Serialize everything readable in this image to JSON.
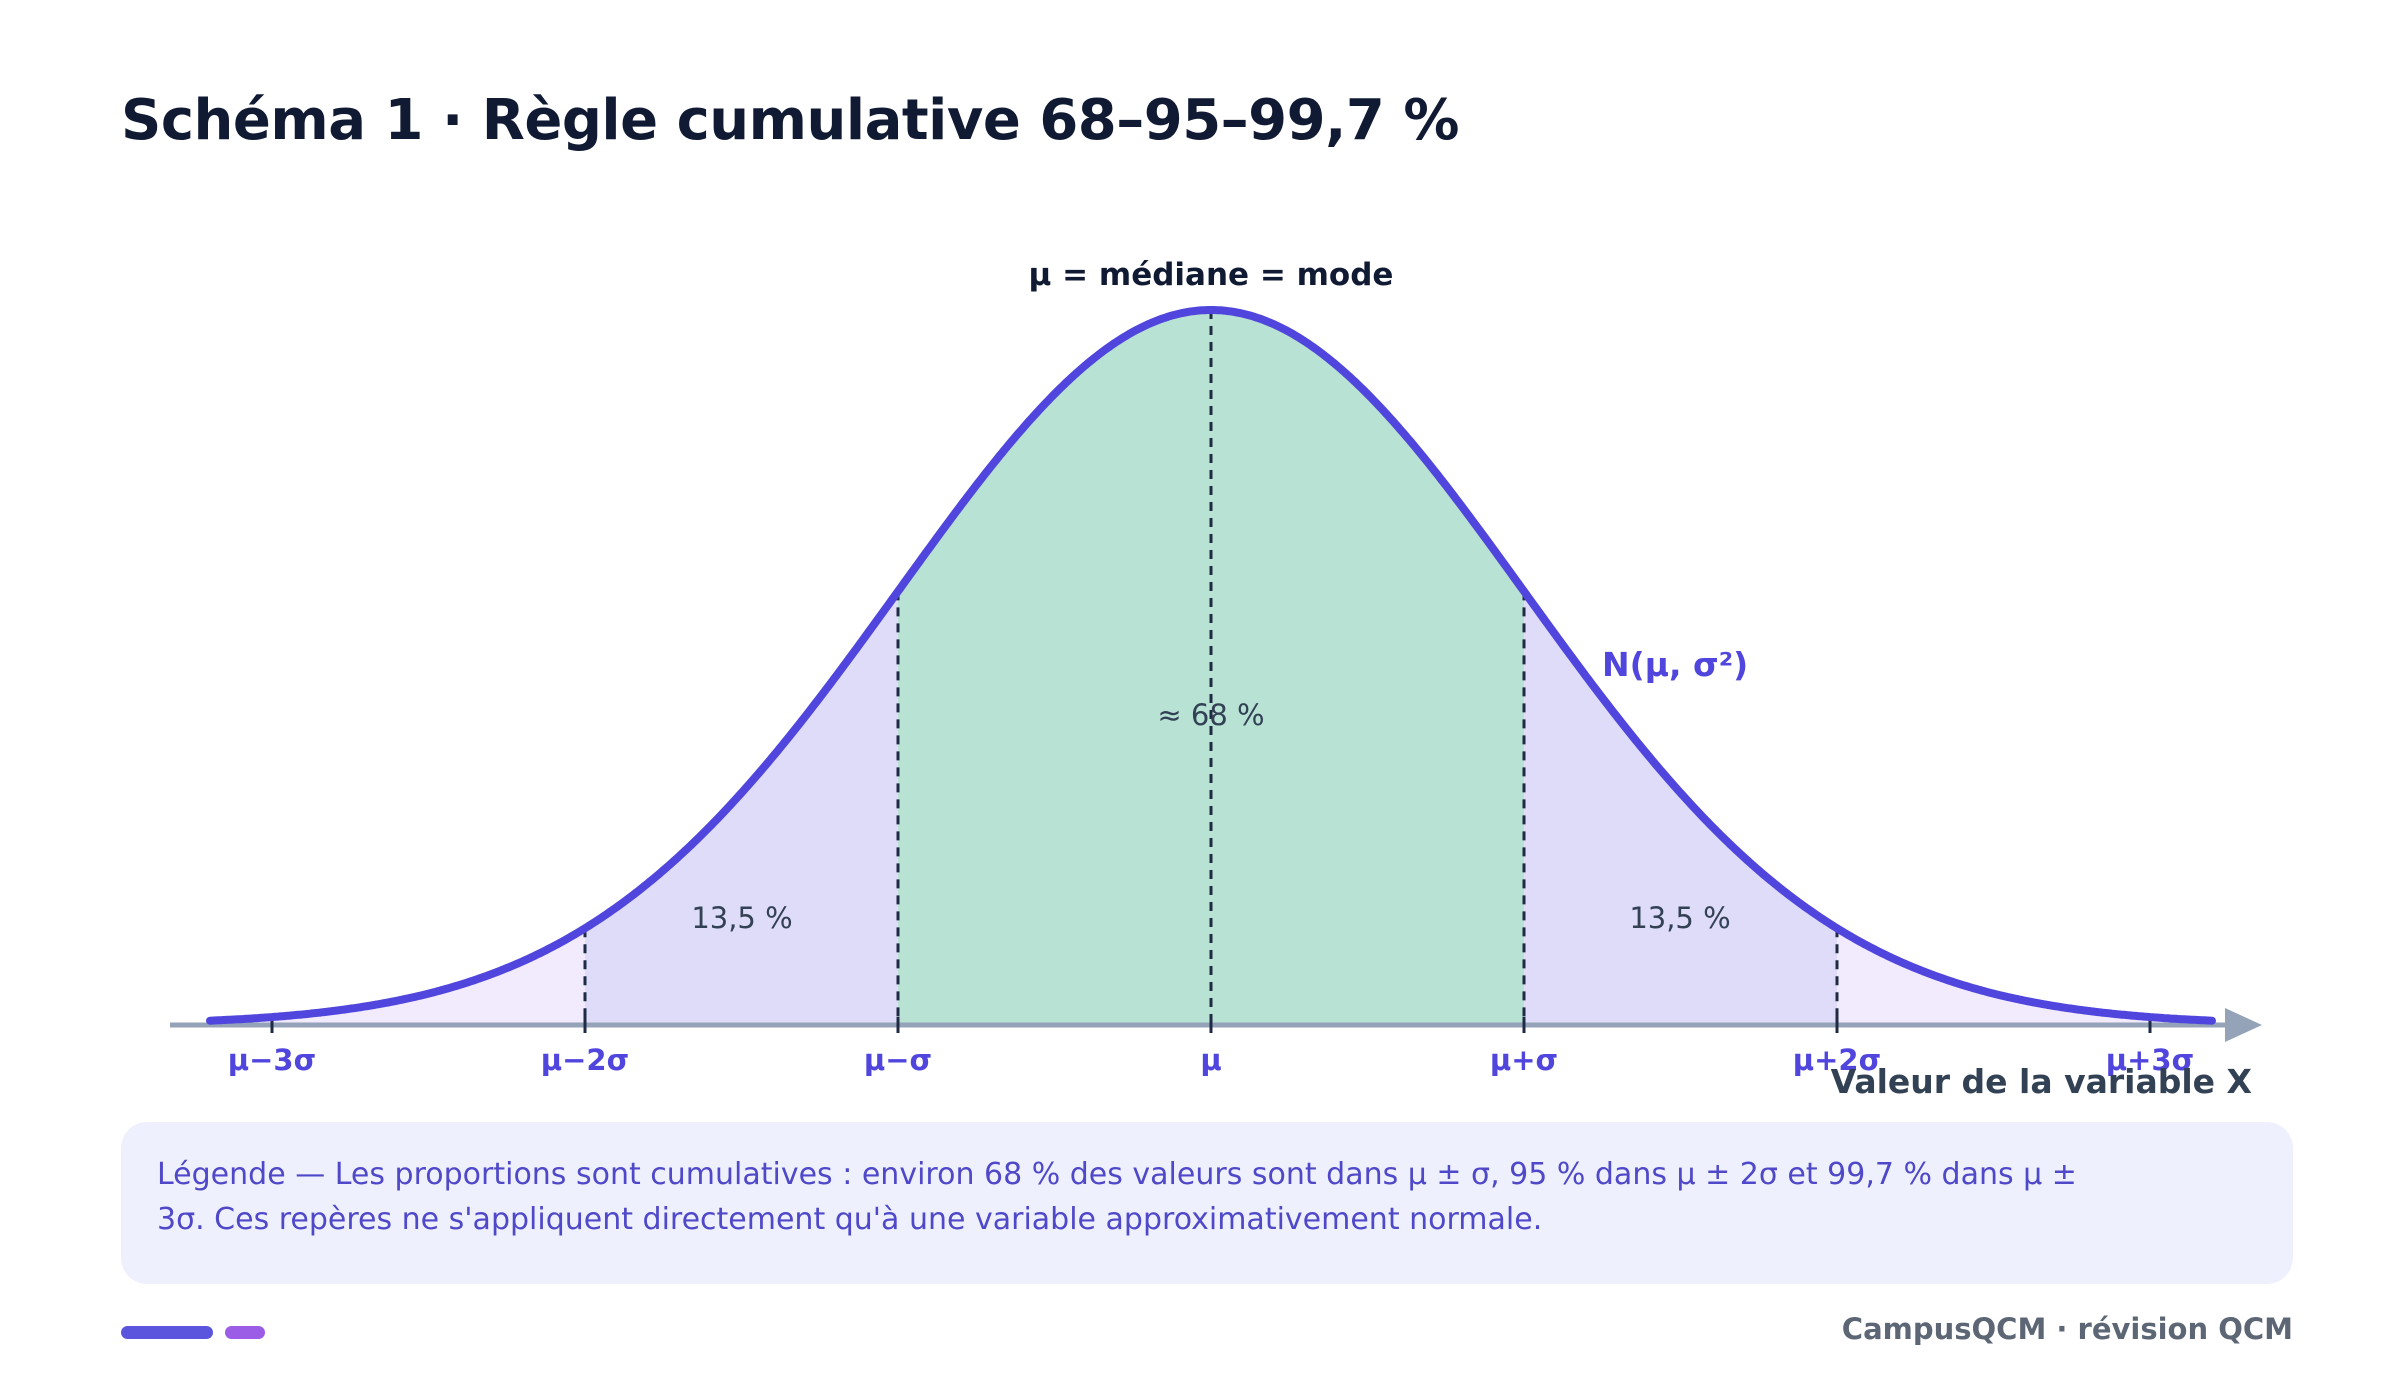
{
  "title": "Schéma 1 · Règle cumulative 68–95–99,7 %",
  "diagram": {
    "center_label": "μ = médiane = mode",
    "curve_label": "N(μ, σ²)",
    "axis_label": "Valeur de la variable X",
    "ticks": [
      "μ−3σ",
      "μ−2σ",
      "μ−σ",
      "μ",
      "μ+σ",
      "μ+2σ",
      "μ+3σ"
    ],
    "regions": {
      "center": "≈ 68 %",
      "left": "13,5 %",
      "right": "13,5 %"
    },
    "colors": {
      "curve": "#5046dd",
      "center_fill": "#b8e2d4",
      "band2_fill": "#dedcf8",
      "band3_fill": "#f2eafd",
      "axis": "#94a3b8",
      "tick_labels": "#5046dd"
    }
  },
  "legend": {
    "text": "Légende — Les proportions sont cumulatives : environ 68 % des valeurs sont dans μ ± σ, 95 % dans μ ± 2σ et 99,7 % dans μ ± 3σ. Ces repères ne s'appliquent directement qu'à une variable approximativement normale."
  },
  "footer": "CampusQCM · révision QCM"
}
